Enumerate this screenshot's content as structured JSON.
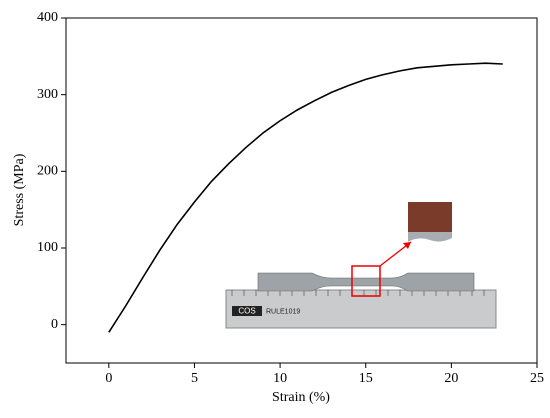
{
  "chart_data": {
    "type": "line",
    "x_label": "Strain (%)",
    "y_label": "Stress (MPa)",
    "x": [
      0,
      1,
      2,
      3,
      4,
      5,
      6,
      7,
      8,
      9,
      10,
      11,
      12,
      13,
      14,
      15,
      16,
      17,
      18,
      19,
      20,
      21,
      22,
      23
    ],
    "series": [
      {
        "name": null,
        "color": "#000000",
        "values": [
          -10,
          25,
          62,
          98,
          131,
          160,
          187,
          210,
          231,
          250,
          266,
          280,
          292,
          303,
          312,
          320,
          326,
          331,
          335,
          337,
          339,
          340,
          341,
          340
        ]
      }
    ],
    "xlim": [
      -2.5,
      25
    ],
    "xticks": [
      0,
      5,
      10,
      15,
      20,
      25
    ],
    "ylim": [
      -50,
      400
    ],
    "yticks": [
      0,
      100,
      200,
      300,
      400
    ],
    "grid": false,
    "photo_labels": [
      "COS",
      "RULE1019"
    ]
  }
}
